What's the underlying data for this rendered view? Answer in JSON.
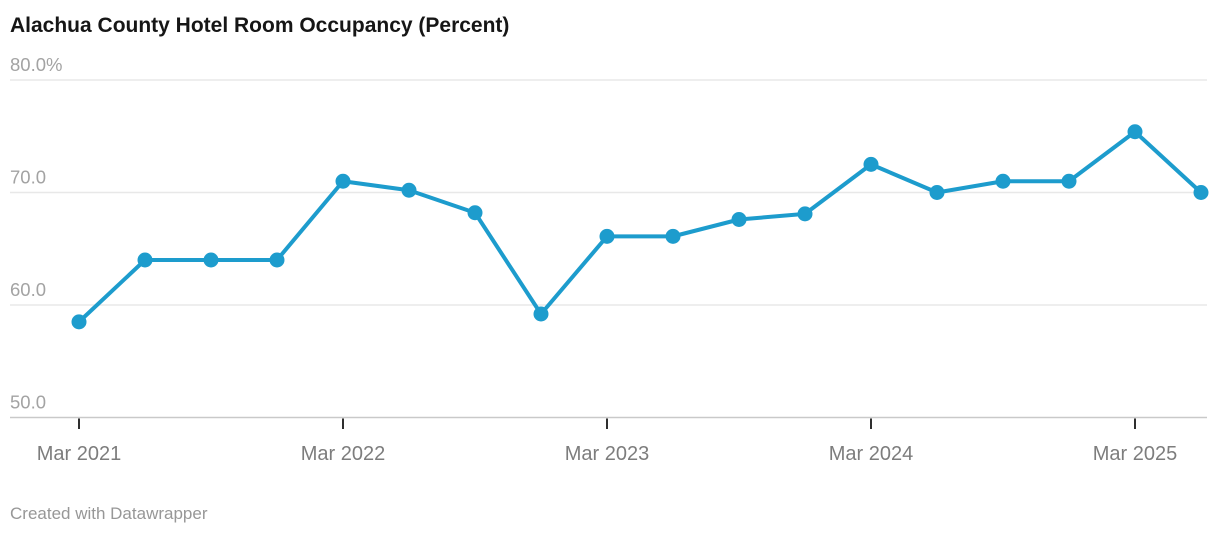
{
  "header": {
    "title": "Alachua County Hotel Room Occupancy (Percent)"
  },
  "footer": {
    "attribution": "Created with Datawrapper"
  },
  "chart_data": {
    "type": "line",
    "title": "Alachua County Hotel Room Occupancy (Percent)",
    "xlabel": "",
    "ylabel": "Percent",
    "ylim": [
      50,
      80
    ],
    "grid": "horizontal",
    "legend": "none",
    "line_color": "#1d9ccd",
    "x": [
      "Mar 2021",
      "Jun 2021",
      "Sep 2021",
      "Dec 2021",
      "Mar 2022",
      "Jun 2022",
      "Sep 2022",
      "Dec 2022",
      "Mar 2023",
      "Jun 2023",
      "Sep 2023",
      "Dec 2023",
      "Mar 2024",
      "Jun 2024",
      "Sep 2024",
      "Dec 2024",
      "Mar 2025",
      "Jun 2025"
    ],
    "values": [
      58.5,
      64.0,
      64.0,
      64.0,
      71.0,
      70.2,
      68.2,
      59.2,
      66.1,
      66.1,
      67.6,
      68.1,
      72.5,
      70.0,
      71.0,
      71.0,
      75.4,
      70.0
    ],
    "y_ticks": [
      {
        "value": 80,
        "label": "80.0%"
      },
      {
        "value": 70,
        "label": "70.0"
      },
      {
        "value": 60,
        "label": "60.0"
      },
      {
        "value": 50,
        "label": "50.0"
      }
    ],
    "x_ticks": [
      {
        "index": 0,
        "label": "Mar 2021"
      },
      {
        "index": 4,
        "label": "Mar 2022"
      },
      {
        "index": 8,
        "label": "Mar 2023"
      },
      {
        "index": 12,
        "label": "Mar 2024"
      },
      {
        "index": 16,
        "label": "Mar 2025"
      }
    ]
  }
}
